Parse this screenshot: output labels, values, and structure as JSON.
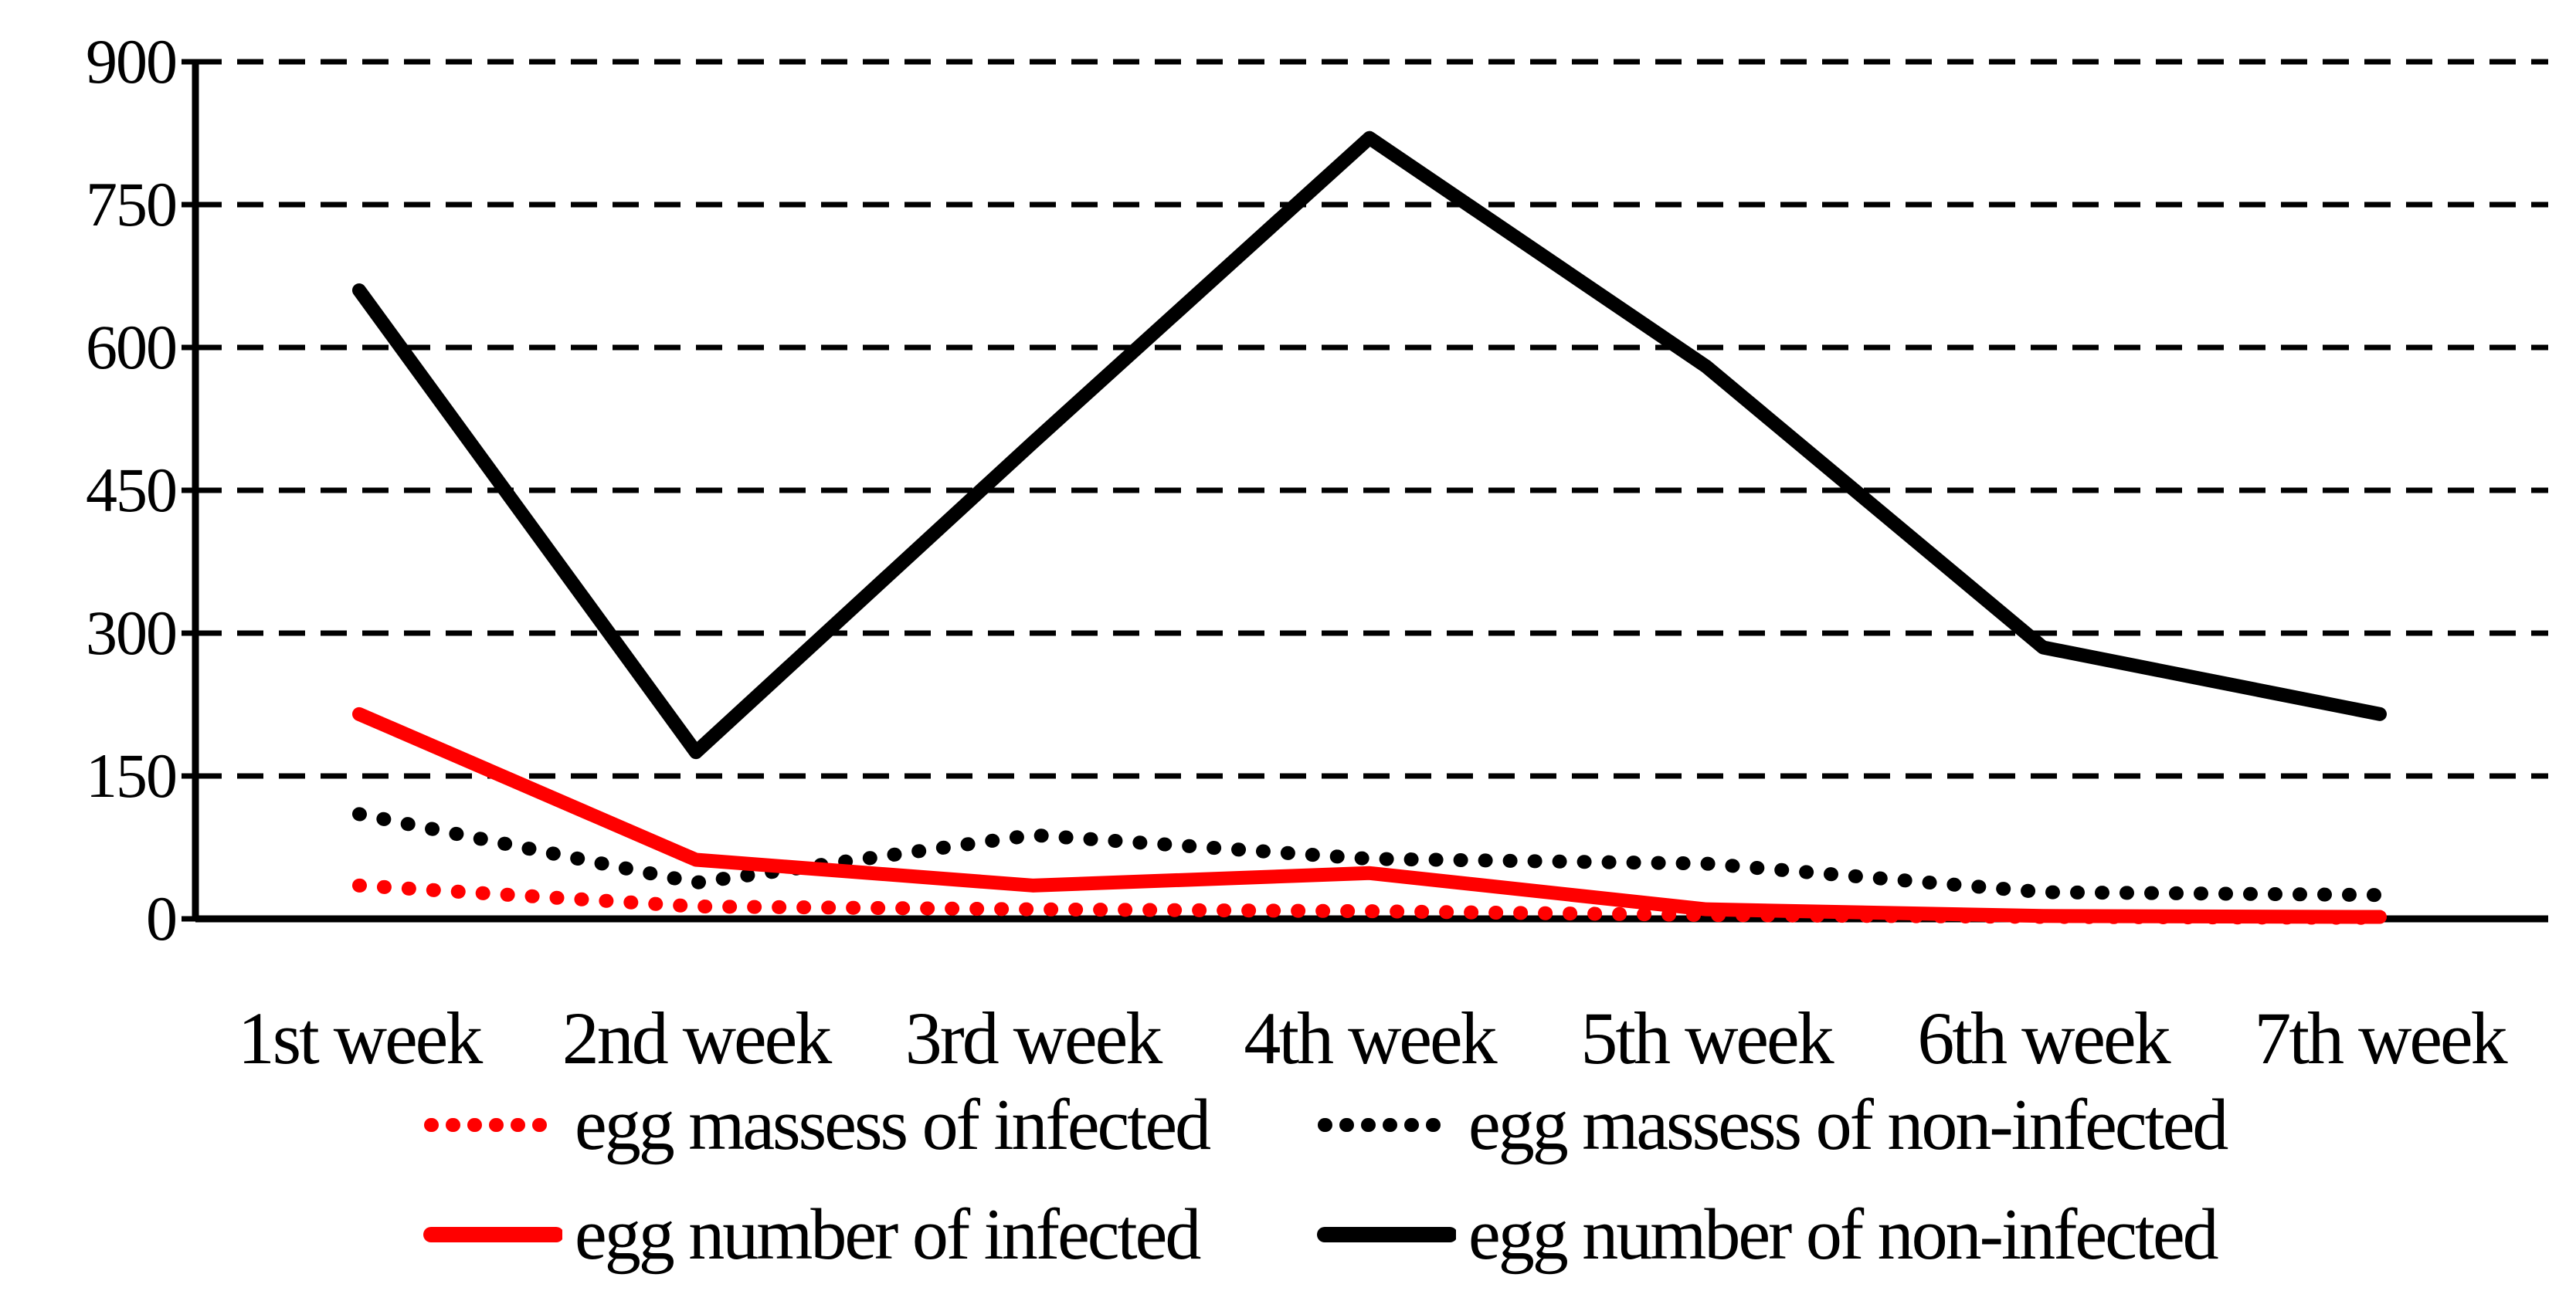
{
  "chart_data": {
    "type": "line",
    "title": "",
    "xlabel": "",
    "ylabel": "",
    "categories": [
      "1st week",
      "2nd week",
      "3rd week",
      "4th week",
      "5th week",
      "6th week",
      "7th week"
    ],
    "y_ticks": [
      900,
      750,
      600,
      450,
      300,
      150,
      0
    ],
    "ylim": [
      0,
      900
    ],
    "grid": "horizontal-dashed",
    "legend_position": "bottom",
    "series": [
      {
        "name": "egg massess of infected",
        "color": "#FF0000",
        "style": "dotted",
        "values": [
          35,
          13,
          10,
          8,
          4,
          2,
          1
        ]
      },
      {
        "name": "egg massess of non-infected",
        "color": "#000000",
        "style": "dotted",
        "values": [
          110,
          38,
          88,
          63,
          58,
          28,
          25
        ]
      },
      {
        "name": "egg number of infected",
        "color": "#FF0000",
        "style": "solid",
        "values": [
          215,
          62,
          35,
          48,
          10,
          3,
          2
        ]
      },
      {
        "name": "egg number of non-infected",
        "color": "#000000",
        "style": "solid",
        "values": [
          660,
          175,
          500,
          820,
          580,
          285,
          215
        ]
      }
    ]
  }
}
